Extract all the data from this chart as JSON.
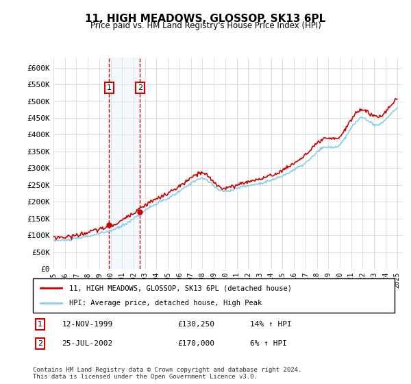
{
  "title": "11, HIGH MEADOWS, GLOSSOP, SK13 6PL",
  "subtitle": "Price paid vs. HM Land Registry's House Price Index (HPI)",
  "ylabel_ticks": [
    "£0",
    "£50K",
    "£100K",
    "£150K",
    "£200K",
    "£250K",
    "£300K",
    "£350K",
    "£400K",
    "£450K",
    "£500K",
    "£550K",
    "£600K"
  ],
  "ytick_values": [
    0,
    50000,
    100000,
    150000,
    200000,
    250000,
    300000,
    350000,
    400000,
    450000,
    500000,
    550000,
    600000
  ],
  "ylim": [
    0,
    630000
  ],
  "xlim_start": 1995.0,
  "xlim_end": 2025.5,
  "transaction1": {
    "date_num": 1999.87,
    "price": 130250,
    "label": "1",
    "info": "12-NOV-1999    £130,250    14% ↑ HPI"
  },
  "transaction2": {
    "date_num": 2002.56,
    "price": 170000,
    "label": "2",
    "info": "25-JUL-2002    £170,000    6% ↑ HPI"
  },
  "hpi_color": "#87CEEB",
  "price_color": "#CC0000",
  "transaction_box_color": "#CC0000",
  "shading_color": "#D0E8F5",
  "legend_line1": "11, HIGH MEADOWS, GLOSSOP, SK13 6PL (detached house)",
  "legend_line2": "HPI: Average price, detached house, High Peak",
  "footer": "Contains HM Land Registry data © Crown copyright and database right 2024.\nThis data is licensed under the Open Government Licence v3.0.",
  "xtick_years": [
    "1995",
    "1996",
    "1997",
    "1998",
    "1999",
    "2000",
    "2001",
    "2002",
    "2003",
    "2004",
    "2005",
    "2006",
    "2007",
    "2008",
    "2009",
    "2010",
    "2011",
    "2012",
    "2013",
    "2014",
    "2015",
    "2016",
    "2017",
    "2018",
    "2019",
    "2020",
    "2021",
    "2022",
    "2023",
    "2024",
    "2025"
  ]
}
